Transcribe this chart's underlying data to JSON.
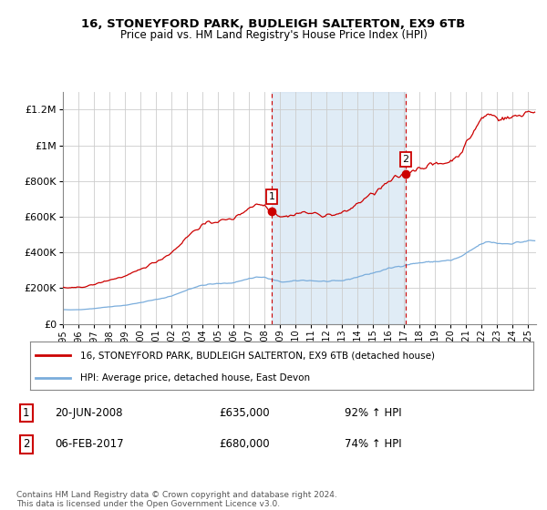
{
  "title": "16, STONEYFORD PARK, BUDLEIGH SALTERTON, EX9 6TB",
  "subtitle": "Price paid vs. HM Land Registry's House Price Index (HPI)",
  "ylim": [
    0,
    1300000
  ],
  "yticks": [
    0,
    200000,
    400000,
    600000,
    800000,
    1000000,
    1200000
  ],
  "ytick_labels": [
    "£0",
    "£200K",
    "£400K",
    "£600K",
    "£800K",
    "£1M",
    "£1.2M"
  ],
  "legend_line1": "16, STONEYFORD PARK, BUDLEIGH SALTERTON, EX9 6TB (detached house)",
  "legend_line2": "HPI: Average price, detached house, East Devon",
  "sale1_date": "20-JUN-2008",
  "sale1_price": 635000,
  "sale1_pct": "92% ↑ HPI",
  "sale2_date": "06-FEB-2017",
  "sale2_price": 680000,
  "sale2_pct": "74% ↑ HPI",
  "footer": "Contains HM Land Registry data © Crown copyright and database right 2024.\nThis data is licensed under the Open Government Licence v3.0.",
  "hpi_color": "#7aaddc",
  "price_color": "#cc0000",
  "sale_marker_color": "#cc0000",
  "shading_color": "#cce0f0",
  "vline_color": "#cc0000",
  "sale1_x": 2008.458,
  "sale2_x": 2017.087,
  "xmin": 1995.0,
  "xmax": 2025.5
}
